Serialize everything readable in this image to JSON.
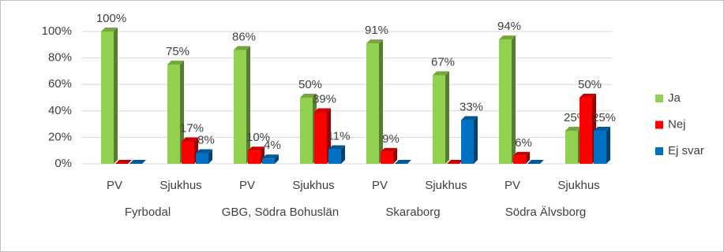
{
  "chart_data": {
    "type": "bar3d",
    "categories": [
      "PV",
      "Sjukhus",
      "PV",
      "Sjukhus",
      "PV",
      "Sjukhus",
      "PV",
      "Sjukhus"
    ],
    "groups": [
      "Fyrbodal",
      "GBG, Södra Bohuslän",
      "Skaraborg",
      "Södra Älvsborg"
    ],
    "series": [
      {
        "name": "Ja",
        "color": "#92d050",
        "values": [
          100,
          75,
          86,
          50,
          91,
          67,
          94,
          25
        ],
        "value_labels": [
          "100%",
          "75%",
          "86%",
          "50%",
          "91%",
          "67%",
          "94%",
          "25%"
        ]
      },
      {
        "name": "Nej",
        "color": "#ff0000",
        "values": [
          0,
          17,
          10,
          39,
          9,
          0,
          6,
          50
        ],
        "value_labels": [
          null,
          "17%",
          "10%",
          "39%",
          "9%",
          null,
          "6%",
          "50%"
        ]
      },
      {
        "name": "Ej svar",
        "color": "#0070c0",
        "values": [
          0,
          8,
          4,
          11,
          0,
          33,
          0,
          25
        ],
        "value_labels": [
          null,
          "8%",
          "4%",
          "11%",
          null,
          "33%",
          null,
          "25%"
        ]
      }
    ],
    "ylim": [
      0,
      100
    ],
    "yticks": [
      {
        "value": 0,
        "label": "0%"
      },
      {
        "value": 20,
        "label": "20%"
      },
      {
        "value": 40,
        "label": "40%"
      },
      {
        "value": 60,
        "label": "60%"
      },
      {
        "value": 80,
        "label": "80%"
      },
      {
        "value": 100,
        "label": "100%"
      }
    ],
    "grid": true,
    "legend": "right"
  }
}
